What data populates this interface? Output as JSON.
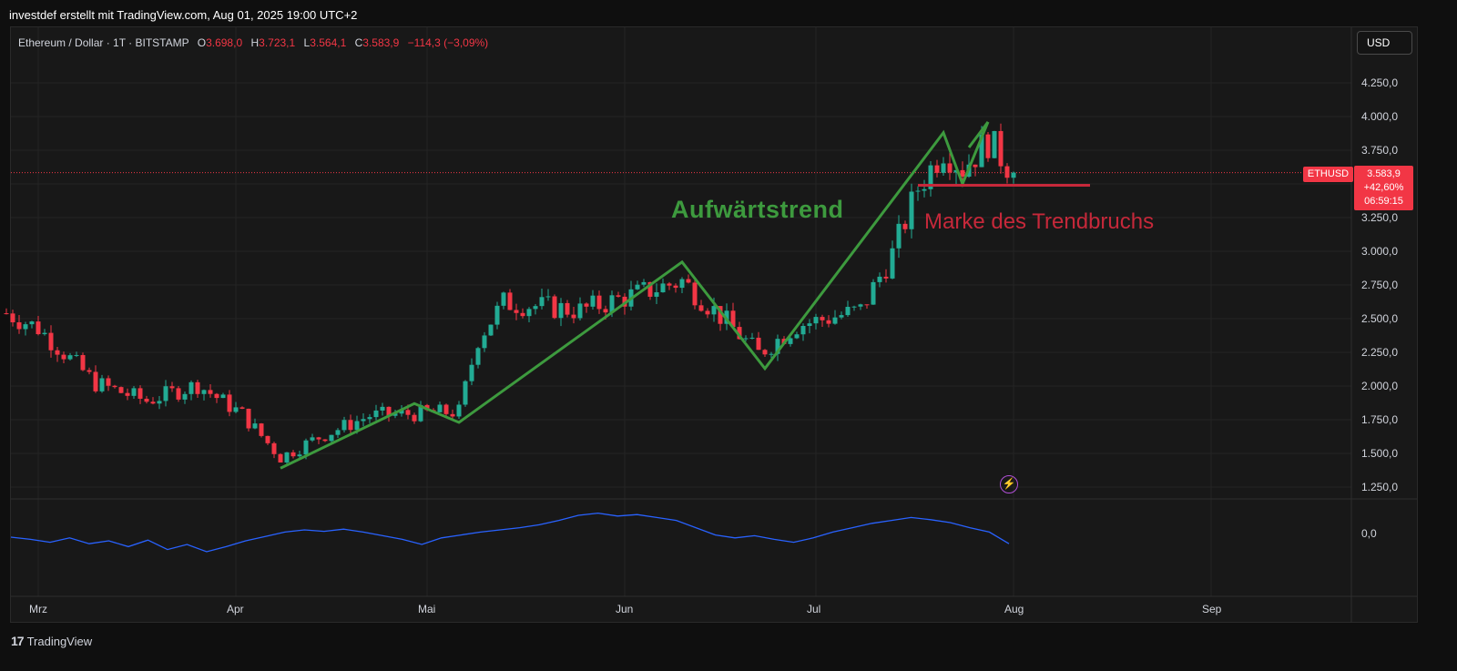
{
  "header": {
    "credit": "investdef erstellt mit TradingView.com, Aug 01, 2025 19:00 UTC+2"
  },
  "legend": {
    "symbol": "Ethereum / Dollar · 1T · BITSTAMP",
    "o_label": "O",
    "o_value": "3.698,0",
    "h_label": "H",
    "h_value": "3.723,1",
    "l_label": "L",
    "l_value": "3.564,1",
    "c_label": "C",
    "c_value": "3.583,9",
    "change": "−114,3 (−3,09%)"
  },
  "currency_button": "USD",
  "annotations": {
    "uptrend": "Aufwärtstrend",
    "trendbreak": "Marke des Trendbruchs"
  },
  "price_tag": {
    "symbol": "ETHUSD",
    "price": "3.583,9",
    "change_pct": "+42,60%",
    "countdown": "06:59:15"
  },
  "footer": {
    "brand": "TradingView",
    "logo_mark": "17"
  },
  "colors": {
    "up": "#22ab94",
    "down": "#f23645",
    "trendline": "#3d9a3e",
    "breakline": "#c6283a",
    "oscillator": "#2962ff"
  },
  "icons": {
    "flash": "lightning-icon"
  },
  "chart_data": {
    "type": "candlestick",
    "x_tick_labels": [
      "Mrz",
      "Apr",
      "Mai",
      "Jun",
      "Jul",
      "Aug",
      "Sep"
    ],
    "y_tick_labels": [
      "4.250,0",
      "4.000,0",
      "3.750,0",
      "3.500,0",
      "3.250,0",
      "3.000,0",
      "2.750,0",
      "2.500,0",
      "2.250,0",
      "2.000,0",
      "1.750,0",
      "1.500,0",
      "1.250,0"
    ],
    "y_ticks": [
      4250,
      4000,
      3750,
      3500,
      3250,
      3000,
      2750,
      2500,
      2250,
      2000,
      1750,
      1500,
      1250
    ],
    "ylim": [
      1150,
      4400
    ],
    "last_price": 3583.9,
    "trendbreak_level": 3490,
    "trend_zigzag": [
      {
        "date": "2025-04-08",
        "price": 1390
      },
      {
        "date": "2025-04-29",
        "price": 1870
      },
      {
        "date": "2025-05-06",
        "price": 1730
      },
      {
        "date": "2025-06-10",
        "price": 2920
      },
      {
        "date": "2025-06-23",
        "price": 2130
      },
      {
        "date": "2025-07-21",
        "price": 3880
      },
      {
        "date": "2025-07-24",
        "price": 3500
      },
      {
        "date": "2025-07-28",
        "price": 3960
      }
    ],
    "monthly_anchors": [
      {
        "date": "2025-02-24",
        "close": 2540
      },
      {
        "date": "2025-03-01",
        "close": 2430
      },
      {
        "date": "2025-03-10",
        "close": 2020
      },
      {
        "date": "2025-03-18",
        "close": 1890
      },
      {
        "date": "2025-03-26",
        "close": 2010
      },
      {
        "date": "2025-04-02",
        "close": 1790
      },
      {
        "date": "2025-04-08",
        "close": 1470
      },
      {
        "date": "2025-04-14",
        "close": 1620
      },
      {
        "date": "2025-04-22",
        "close": 1780
      },
      {
        "date": "2025-05-06",
        "close": 1810
      },
      {
        "date": "2025-05-09",
        "close": 2350
      },
      {
        "date": "2025-05-13",
        "close": 2620
      },
      {
        "date": "2025-05-25",
        "close": 2560
      },
      {
        "date": "2025-06-10",
        "close": 2780
      },
      {
        "date": "2025-06-16",
        "close": 2520
      },
      {
        "date": "2025-06-22",
        "close": 2240
      },
      {
        "date": "2025-06-28",
        "close": 2450
      },
      {
        "date": "2025-07-08",
        "close": 2560
      },
      {
        "date": "2025-07-13",
        "close": 2980
      },
      {
        "date": "2025-07-17",
        "close": 3470
      },
      {
        "date": "2025-07-21",
        "close": 3760
      },
      {
        "date": "2025-07-24",
        "close": 3620
      },
      {
        "date": "2025-07-28",
        "close": 3820
      },
      {
        "date": "2025-08-01",
        "close": 3583.9
      }
    ],
    "oscillator": {
      "zero_label": "0,0",
      "values": [
        -5,
        -8,
        -12,
        -6,
        -14,
        -10,
        -18,
        -9,
        -22,
        -15,
        -25,
        -18,
        -10,
        -4,
        2,
        5,
        3,
        6,
        2,
        -3,
        -8,
        -15,
        -6,
        -2,
        2,
        5,
        8,
        12,
        18,
        25,
        28,
        24,
        26,
        22,
        18,
        8,
        -2,
        -6,
        -3,
        -8,
        -12,
        -6,
        2,
        8,
        14,
        18,
        22,
        19,
        15,
        8,
        2,
        -14
      ]
    }
  }
}
